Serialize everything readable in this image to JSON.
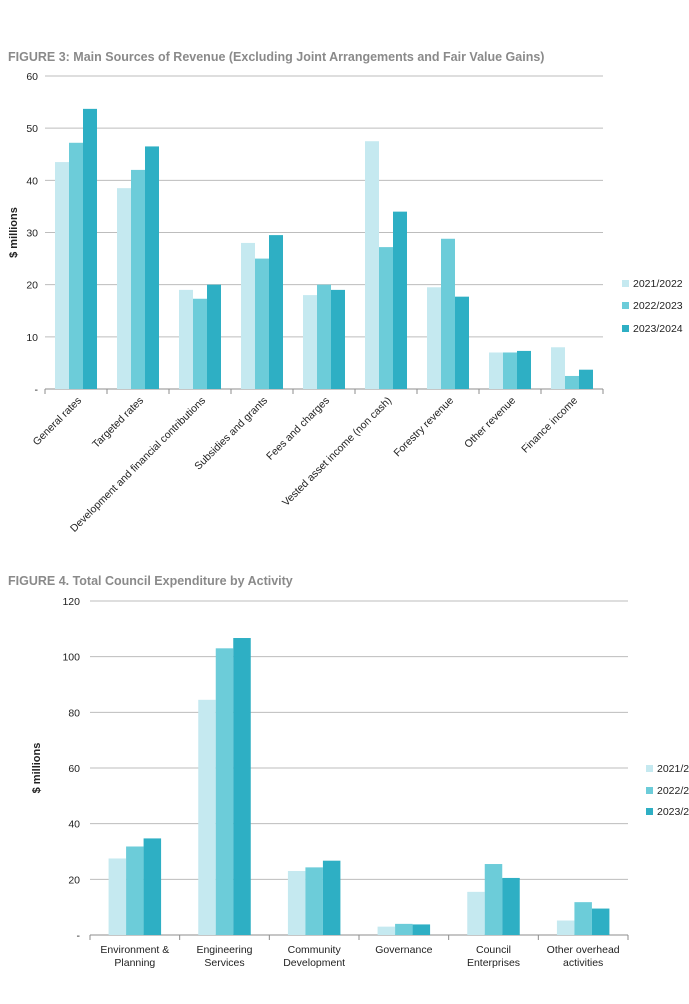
{
  "figure3": {
    "title": "FIGURE 3: Main Sources of Revenue (Excluding Joint Arrangements and Fair Value Gains)"
  },
  "figure4": {
    "title": "FIGURE 4. Total Council Expenditure by Activity"
  },
  "colors": {
    "s1": "#c5e9f0",
    "s2": "#6cccd9",
    "s3": "#2eafc4",
    "grid": "#bdbdbd",
    "axis": "#8c8c8c"
  },
  "chart_data": [
    {
      "type": "bar",
      "title": "FIGURE 3: Main Sources of Revenue (Excluding Joint Arrangements and Fair Value Gains)",
      "ylabel": "$ millions",
      "xlabel": "",
      "ylim": [
        0,
        60
      ],
      "yticks": [
        "-",
        "10",
        "20",
        "30",
        "40",
        "50",
        "60"
      ],
      "categories": [
        "General rates",
        "Targeted rates",
        "Development and financial contributions",
        "Subsidies and grants",
        "Fees and charges",
        "Vested asset income (non cash)",
        "Forestry revenue",
        "Other revenue",
        "Finance income"
      ],
      "series": [
        {
          "name": "2021/2022",
          "values": [
            43.5,
            38.5,
            19.0,
            28.0,
            18.0,
            47.5,
            19.5,
            7.0,
            8.0
          ]
        },
        {
          "name": "2022/2023",
          "values": [
            47.2,
            42.0,
            17.3,
            25.0,
            20.0,
            27.2,
            28.8,
            7.0,
            2.5
          ]
        },
        {
          "name": "2023/2024",
          "values": [
            53.7,
            46.5,
            20.0,
            29.5,
            19.0,
            34.0,
            17.7,
            7.3,
            3.7
          ]
        }
      ],
      "grid": true,
      "legend": "right"
    },
    {
      "type": "bar",
      "title": "FIGURE 4. Total Council Expenditure by Activity",
      "ylabel": "$ millions",
      "xlabel": "",
      "ylim": [
        0,
        120
      ],
      "yticks": [
        "-",
        "20",
        "40",
        "60",
        "80",
        "100",
        "120"
      ],
      "categories": [
        "Environment & Planning",
        "Engineering Services",
        "Community Development",
        "Governance",
        "Council Enterprises",
        "Other overhead activities"
      ],
      "series": [
        {
          "name": "2021/2",
          "values": [
            27.5,
            84.5,
            23.0,
            3.0,
            15.5,
            5.2
          ]
        },
        {
          "name": "2022/2",
          "values": [
            31.8,
            103.0,
            24.3,
            4.0,
            25.5,
            11.8
          ]
        },
        {
          "name": "2023/2",
          "values": [
            34.7,
            106.7,
            26.7,
            3.8,
            20.5,
            9.5
          ]
        }
      ],
      "grid": true,
      "legend": "right"
    }
  ]
}
